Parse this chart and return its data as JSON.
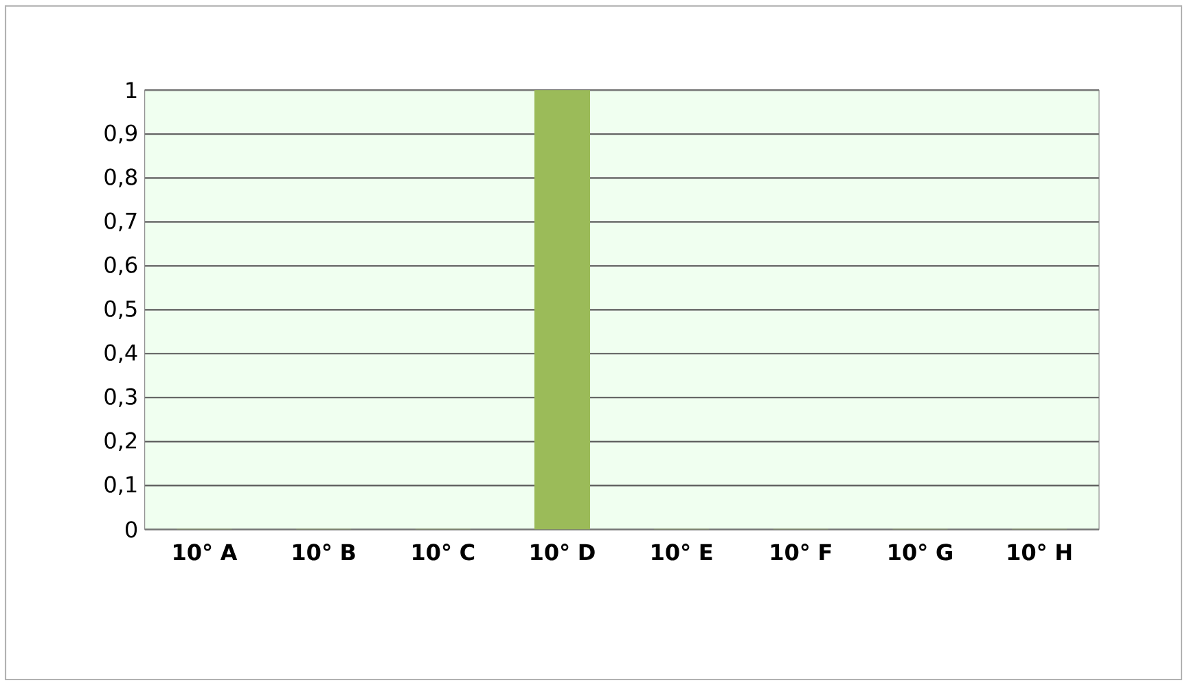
{
  "chart_data": {
    "type": "bar",
    "categories": [
      "10° A",
      "10° B",
      "10° C",
      "10° D",
      "10° E",
      "10° F",
      "10° G",
      "10° H"
    ],
    "values": [
      0,
      0,
      0,
      1,
      0,
      0,
      0,
      0
    ],
    "color": "#9bbb59",
    "ylim": [
      0,
      1
    ],
    "yticks": [
      0,
      {
        "value": 0.1,
        "label": "0,1"
      },
      {
        "value": 0.2,
        "label": "0,2"
      },
      {
        "value": 0.3,
        "label": "0,3"
      },
      {
        "value": 0.4,
        "label": "0,4"
      },
      {
        "value": 0.5,
        "label": "0,5"
      },
      {
        "value": 0.6,
        "label": "0,6"
      },
      {
        "value": 0.7,
        "label": "0,7"
      },
      {
        "value": 0.8,
        "label": "0,8"
      },
      {
        "value": 0.9,
        "label": "0,9"
      },
      1
    ],
    "grid": "y"
  }
}
